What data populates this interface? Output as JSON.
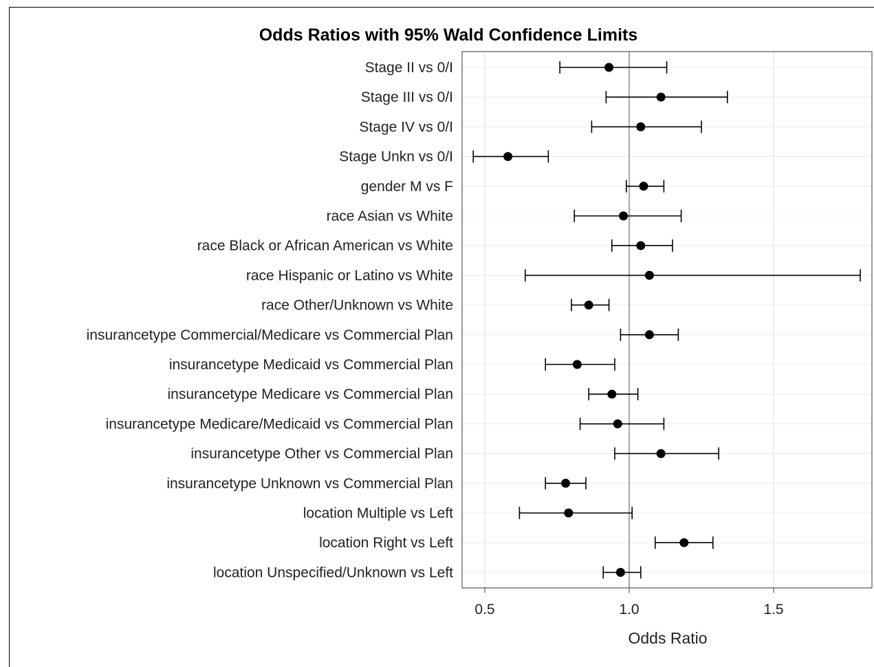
{
  "chart_data": {
    "type": "forest",
    "title": "Odds Ratios with 95% Wald Confidence Limits",
    "xlabel": "Odds Ratio",
    "ylabel": "",
    "xlim": [
      0.45,
      1.82
    ],
    "xticks": [
      0.5,
      1.0,
      1.5
    ],
    "xtick_labels": [
      "0.5",
      "1.0",
      "1.5"
    ],
    "reference_line": 1.0,
    "grid": true,
    "colors": {
      "marker": "#000000",
      "grid": "#dcdcdc",
      "reference": "#707070",
      "frame": "#333333"
    },
    "categories": [
      "Stage II vs 0/I",
      "Stage III vs 0/I",
      "Stage IV vs 0/I",
      "Stage Unkn vs 0/I",
      "gender M vs F",
      "race Asian vs White",
      "race Black or African American vs White",
      "race Hispanic or Latino vs White",
      "race Other/Unknown vs White",
      "insurancetype Commercial/Medicare vs Commercial Plan",
      "insurancetype Medicaid vs Commercial Plan",
      "insurancetype Medicare vs Commercial Plan",
      "insurancetype Medicare/Medicaid vs Commercial Plan",
      "insurancetype Other vs Commercial Plan",
      "insurancetype Unknown vs Commercial Plan",
      "location Multiple vs Left",
      "location Right vs Left",
      "location Unspecified/Unknown vs Left"
    ],
    "estimates": [
      0.93,
      1.11,
      1.04,
      0.58,
      1.05,
      0.98,
      1.04,
      1.07,
      0.86,
      1.07,
      0.82,
      0.94,
      0.96,
      1.11,
      0.78,
      0.79,
      1.19,
      0.97
    ],
    "lower": [
      0.76,
      0.92,
      0.87,
      0.46,
      0.99,
      0.81,
      0.94,
      0.64,
      0.8,
      0.97,
      0.71,
      0.86,
      0.83,
      0.95,
      0.71,
      0.62,
      1.09,
      0.91
    ],
    "upper": [
      1.13,
      1.34,
      1.25,
      0.72,
      1.12,
      1.18,
      1.15,
      1.8,
      0.93,
      1.17,
      0.95,
      1.03,
      1.12,
      1.31,
      0.85,
      1.01,
      1.29,
      1.04
    ]
  }
}
